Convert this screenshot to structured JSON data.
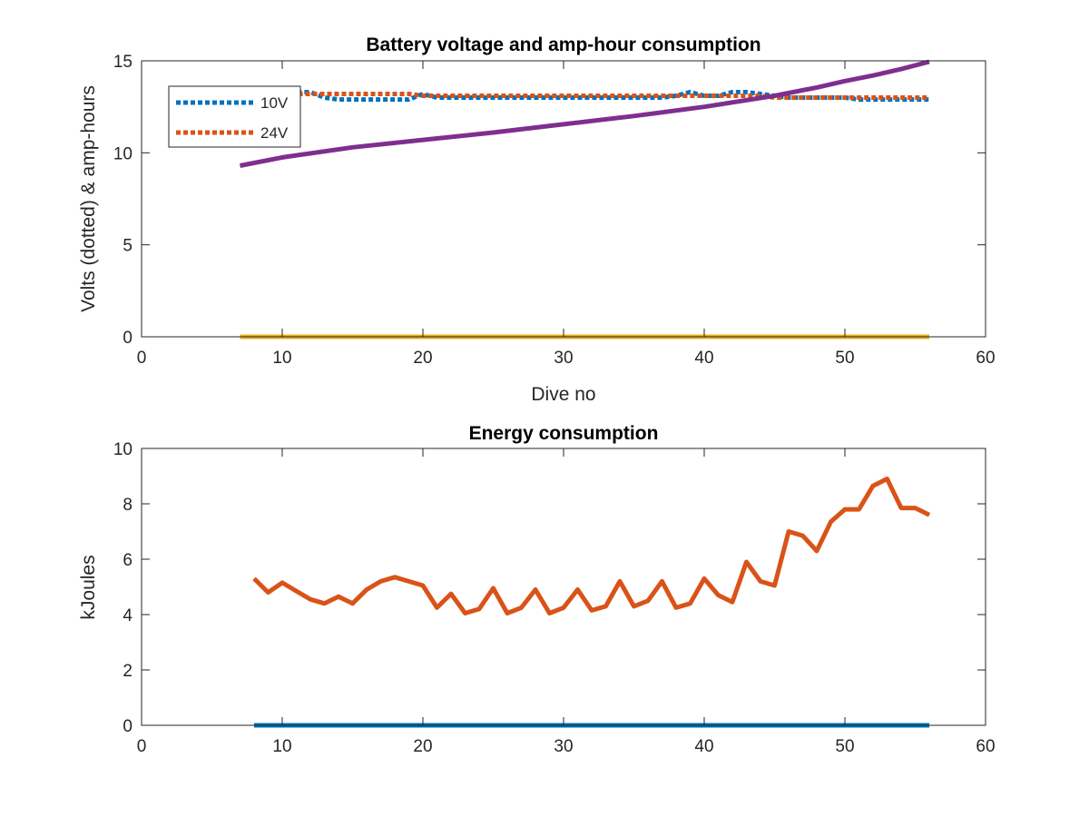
{
  "chart_data": [
    {
      "type": "line",
      "title": "Battery voltage and amp-hour consumption",
      "xlabel": "Dive no",
      "ylabel": "Volts (dotted) & amp-hours",
      "xlim": [
        0,
        60
      ],
      "ylim": [
        0,
        15
      ],
      "xticks": [
        0,
        10,
        20,
        30,
        40,
        50,
        60
      ],
      "yticks": [
        0,
        5,
        10,
        15
      ],
      "grid": false,
      "legend": {
        "placement": "top-left",
        "entries": [
          "10V",
          "24V"
        ]
      },
      "series": [
        {
          "name": "10V",
          "style": "dotted",
          "color": "#0072BD",
          "x": [
            7,
            8,
            9,
            10,
            11,
            12,
            13,
            14,
            15,
            16,
            17,
            18,
            19,
            20,
            21,
            22,
            23,
            24,
            25,
            26,
            27,
            28,
            29,
            30,
            31,
            32,
            33,
            34,
            35,
            36,
            37,
            38,
            39,
            40,
            41,
            42,
            43,
            44,
            45,
            46,
            47,
            48,
            49,
            50,
            51,
            52,
            53,
            54,
            55,
            56
          ],
          "y": [
            13.0,
            13.0,
            13.0,
            13.0,
            13.3,
            13.3,
            13.0,
            12.9,
            12.9,
            12.9,
            12.9,
            12.9,
            12.9,
            13.2,
            13.0,
            13.0,
            13.0,
            13.0,
            13.0,
            13.0,
            13.0,
            13.0,
            13.0,
            13.0,
            13.0,
            13.0,
            13.0,
            13.0,
            13.0,
            13.0,
            13.0,
            13.1,
            13.3,
            13.1,
            13.1,
            13.3,
            13.3,
            13.2,
            13.1,
            13.0,
            13.0,
            13.0,
            13.0,
            13.0,
            12.9,
            12.9,
            12.9,
            12.9,
            12.9,
            12.9
          ]
        },
        {
          "name": "24V",
          "style": "dotted",
          "color": "#D95319",
          "x": [
            7,
            8,
            9,
            10,
            11,
            12,
            13,
            14,
            15,
            16,
            17,
            18,
            19,
            20,
            21,
            22,
            23,
            24,
            25,
            26,
            27,
            28,
            29,
            30,
            31,
            32,
            33,
            34,
            35,
            36,
            37,
            38,
            39,
            40,
            41,
            42,
            43,
            44,
            45,
            46,
            47,
            48,
            49,
            50,
            51,
            52,
            53,
            54,
            55,
            56
          ],
          "y": [
            13.2,
            13.2,
            13.2,
            13.2,
            13.2,
            13.2,
            13.2,
            13.2,
            13.2,
            13.2,
            13.2,
            13.2,
            13.2,
            13.1,
            13.1,
            13.1,
            13.1,
            13.1,
            13.1,
            13.1,
            13.1,
            13.1,
            13.1,
            13.1,
            13.1,
            13.1,
            13.1,
            13.1,
            13.1,
            13.1,
            13.1,
            13.1,
            13.1,
            13.1,
            13.1,
            13.1,
            13.1,
            13.1,
            13.0,
            13.0,
            13.0,
            13.0,
            13.0,
            13.0,
            13.0,
            13.0,
            13.0,
            13.0,
            13.0,
            13.0
          ]
        },
        {
          "style": "solid",
          "color": "#7E2F8E",
          "x": [
            7,
            10,
            15,
            20,
            25,
            30,
            35,
            40,
            45,
            48,
            50,
            52,
            54,
            56
          ],
          "y": [
            9.3,
            9.75,
            10.3,
            10.7,
            11.1,
            11.55,
            12.0,
            12.5,
            13.1,
            13.55,
            13.9,
            14.2,
            14.55,
            14.95
          ]
        },
        {
          "style": "solid",
          "color": "#EDB120",
          "x": [
            7,
            56
          ],
          "y": [
            0,
            0
          ]
        }
      ]
    },
    {
      "type": "line",
      "title": "Energy consumption",
      "xlabel": "",
      "ylabel": "kJoules",
      "xlim": [
        0,
        60
      ],
      "ylim": [
        0,
        10
      ],
      "xticks": [
        0,
        10,
        20,
        30,
        40,
        50,
        60
      ],
      "yticks": [
        0,
        2,
        4,
        6,
        8,
        10
      ],
      "grid": false,
      "series": [
        {
          "style": "solid",
          "color": "#D95319",
          "x": [
            8,
            9,
            10,
            11,
            12,
            13,
            14,
            15,
            16,
            17,
            18,
            19,
            20,
            21,
            22,
            23,
            24,
            25,
            26,
            27,
            28,
            29,
            30,
            31,
            32,
            33,
            34,
            35,
            36,
            37,
            38,
            39,
            40,
            41,
            42,
            43,
            44,
            45,
            46,
            47,
            48,
            49,
            50,
            51,
            52,
            53,
            54,
            55,
            56
          ],
          "y": [
            5.3,
            4.8,
            5.15,
            4.85,
            4.55,
            4.4,
            4.65,
            4.4,
            4.9,
            5.2,
            5.35,
            5.2,
            5.05,
            4.25,
            4.75,
            4.05,
            4.2,
            4.95,
            4.05,
            4.25,
            4.9,
            4.05,
            4.25,
            4.9,
            4.15,
            4.3,
            5.2,
            4.3,
            4.5,
            5.2,
            4.25,
            4.4,
            5.3,
            4.7,
            4.45,
            5.9,
            5.2,
            5.05,
            7.0,
            6.85,
            6.3,
            7.35,
            7.8,
            7.8,
            8.65,
            8.9,
            7.85,
            7.85,
            7.6
          ]
        },
        {
          "style": "solid",
          "color": "#0072BD",
          "x": [
            8,
            56
          ],
          "y": [
            0,
            0
          ]
        }
      ]
    }
  ]
}
